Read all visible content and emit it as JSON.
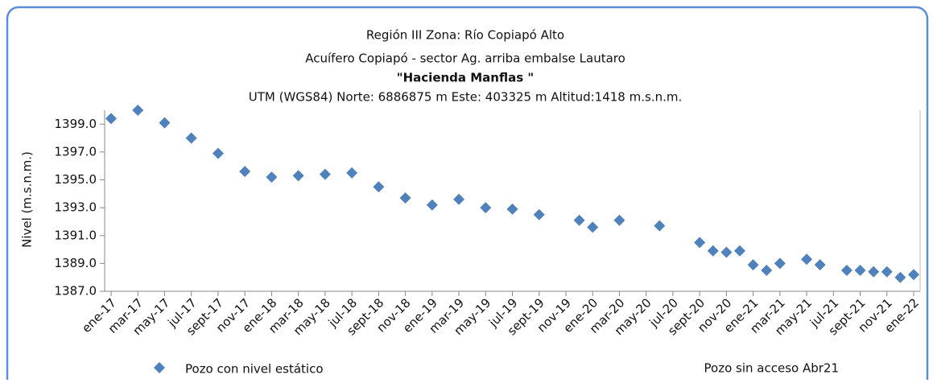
{
  "chart_data": {
    "type": "scatter",
    "title": [
      "Región III   Zona: Río Copiapó Alto",
      "Acuífero Copiapó - sector Ag. arriba embalse Lautaro",
      "\"Hacienda Manflas \"",
      "UTM (WGS84) Norte: 6886875 m     Este: 403325 m Altitud:1418 m.s.n.m."
    ],
    "ylabel": "Nivel (m.s.n.m.)",
    "annotation": "Pozo sin acceso  Abr21",
    "series": [
      {
        "name": "Pozo con nivel estático",
        "color": "#4f81bd",
        "x": [
          "2017-01",
          "2017-03",
          "2017-05",
          "2017-07",
          "2017-09",
          "2017-11",
          "2018-01",
          "2018-03",
          "2018-05",
          "2018-07",
          "2018-09",
          "2018-11",
          "2019-01",
          "2019-03",
          "2019-05",
          "2019-07",
          "2019-09",
          "2019-12",
          "2020-01",
          "2020-03",
          "2020-06",
          "2020-09",
          "2020-10",
          "2020-11",
          "2020-12",
          "2021-01",
          "2021-02",
          "2021-03",
          "2021-05",
          "2021-06",
          "2021-08",
          "2021-09",
          "2021-10",
          "2021-11",
          "2021-12",
          "2022-01"
        ],
        "values": [
          1399.4,
          1400.0,
          1399.1,
          1398.0,
          1396.9,
          1395.6,
          1395.2,
          1395.3,
          1395.4,
          1395.5,
          1394.5,
          1393.7,
          1393.2,
          1393.6,
          1393.0,
          1392.9,
          1392.5,
          1392.1,
          1391.6,
          1392.1,
          1391.7,
          1390.5,
          1389.9,
          1389.8,
          1389.9,
          1388.9,
          1388.5,
          1389.0,
          1389.3,
          1388.9,
          1388.5,
          1388.5,
          1388.4,
          1388.4,
          1388.0,
          1388.2
        ]
      }
    ],
    "xlim": [
      "2017-01",
      "2022-01"
    ],
    "xticks": [
      {
        "value": "2017-01",
        "label": "ene-17"
      },
      {
        "value": "2017-03",
        "label": "mar-17"
      },
      {
        "value": "2017-05",
        "label": "may-17"
      },
      {
        "value": "2017-07",
        "label": "jul-17"
      },
      {
        "value": "2017-09",
        "label": "sept-17"
      },
      {
        "value": "2017-11",
        "label": "nov-17"
      },
      {
        "value": "2018-01",
        "label": "ene-18"
      },
      {
        "value": "2018-03",
        "label": "mar-18"
      },
      {
        "value": "2018-05",
        "label": "may-18"
      },
      {
        "value": "2018-07",
        "label": "jul-18"
      },
      {
        "value": "2018-09",
        "label": "sept-18"
      },
      {
        "value": "2018-11",
        "label": "nov-18"
      },
      {
        "value": "2019-01",
        "label": "ene-19"
      },
      {
        "value": "2019-03",
        "label": "mar-19"
      },
      {
        "value": "2019-05",
        "label": "may-19"
      },
      {
        "value": "2019-07",
        "label": "jul-19"
      },
      {
        "value": "2019-09",
        "label": "sept-19"
      },
      {
        "value": "2019-11",
        "label": "nov-19"
      },
      {
        "value": "2020-01",
        "label": "ene-20"
      },
      {
        "value": "2020-03",
        "label": "mar-20"
      },
      {
        "value": "2020-05",
        "label": "may-20"
      },
      {
        "value": "2020-07",
        "label": "jul-20"
      },
      {
        "value": "2020-09",
        "label": "sept-20"
      },
      {
        "value": "2020-11",
        "label": "nov-20"
      },
      {
        "value": "2021-01",
        "label": "ene-21"
      },
      {
        "value": "2021-03",
        "label": "mar-21"
      },
      {
        "value": "2021-05",
        "label": "may-21"
      },
      {
        "value": "2021-07",
        "label": "jul-21"
      },
      {
        "value": "2021-09",
        "label": "sept-21"
      },
      {
        "value": "2021-11",
        "label": "nov-21"
      },
      {
        "value": "2022-01",
        "label": "ene-22"
      }
    ],
    "ylim": [
      1387,
      1400
    ],
    "yticks": [
      {
        "value": 1387,
        "label": "1387.0"
      },
      {
        "value": 1389,
        "label": "1389.0"
      },
      {
        "value": 1391,
        "label": "1391.0"
      },
      {
        "value": 1393,
        "label": "1393.0"
      },
      {
        "value": 1395,
        "label": "1395.0"
      },
      {
        "value": 1397,
        "label": "1397.0"
      },
      {
        "value": 1399,
        "label": "1399.0"
      }
    ],
    "grid": false
  }
}
